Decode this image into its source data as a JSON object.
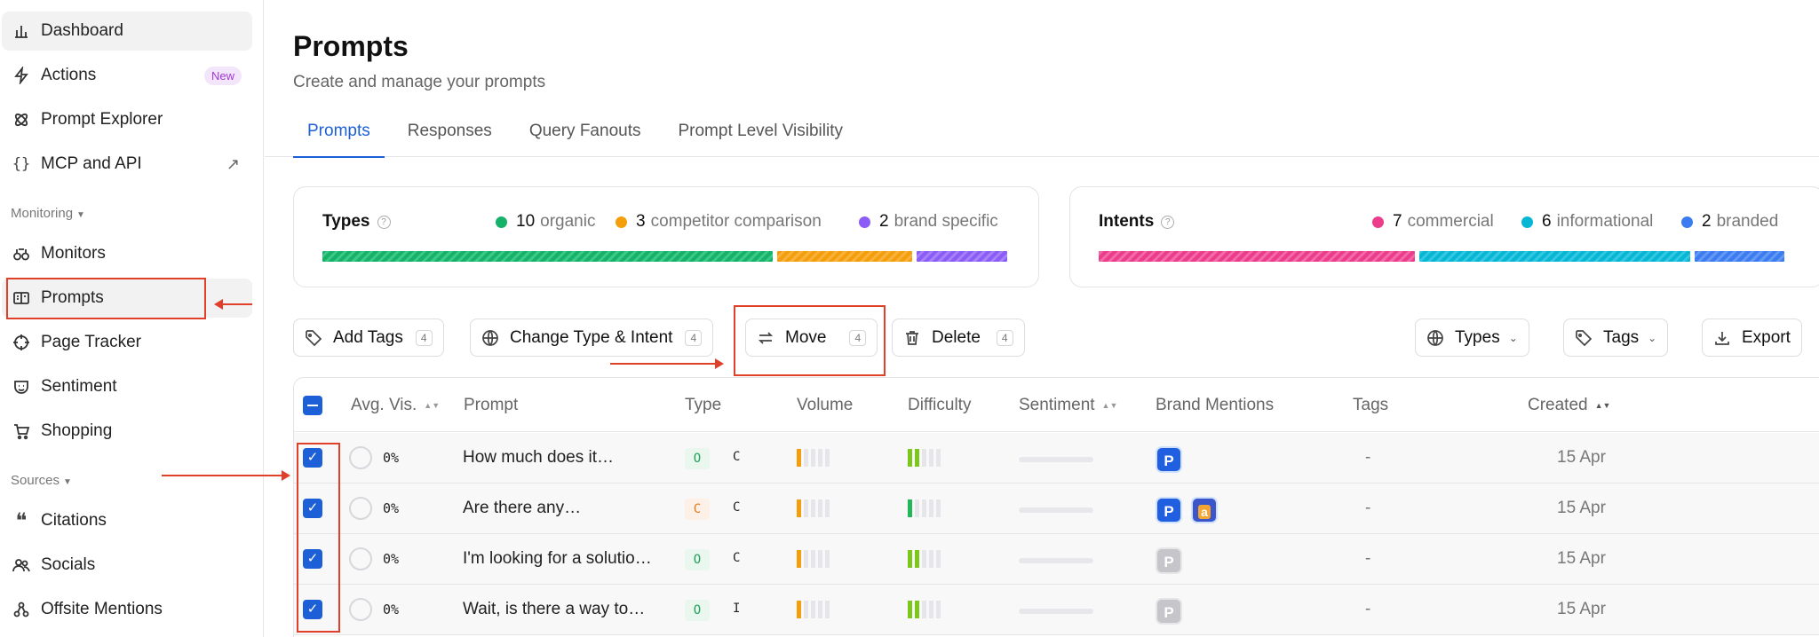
{
  "sidebar": {
    "items": [
      {
        "label": "Dashboard",
        "icon": "bar-chart-icon"
      },
      {
        "label": "Actions",
        "icon": "lightning-icon",
        "badge": "New"
      },
      {
        "label": "Prompt Explorer",
        "icon": "atom-icon"
      },
      {
        "label": "MCP and API",
        "icon": "braces-icon",
        "ext": "↗"
      },
      {
        "label": "Monitors",
        "icon": "binoculars-icon"
      },
      {
        "label": "Prompts",
        "icon": "prompt-card-icon"
      },
      {
        "label": "Page Tracker",
        "icon": "crosshair-icon"
      },
      {
        "label": "Sentiment",
        "icon": "mask-icon"
      },
      {
        "label": "Shopping",
        "icon": "cart-icon"
      },
      {
        "label": "Citations",
        "icon": "quote-icon"
      },
      {
        "label": "Socials",
        "icon": "people-icon"
      },
      {
        "label": "Offsite Mentions",
        "icon": "nodes-icon"
      }
    ],
    "sections": {
      "monitoring": "Monitoring",
      "sources": "Sources"
    }
  },
  "header": {
    "title": "Prompts",
    "subtitle": "Create and manage your prompts"
  },
  "tabs": [
    "Prompts",
    "Responses",
    "Query Fanouts",
    "Prompt Level Visibility"
  ],
  "types_card": {
    "title": "Types",
    "entries": [
      {
        "count": "10",
        "label": "organic",
        "color": "#17b26a"
      },
      {
        "count": "3",
        "label": "competitor comparison",
        "color": "#f59e0b"
      },
      {
        "count": "2",
        "label": "brand specific",
        "color": "#8b5cf6"
      }
    ]
  },
  "intents_card": {
    "title": "Intents",
    "entries": [
      {
        "count": "7",
        "label": "commercial",
        "color": "#ec3c8c"
      },
      {
        "count": "6",
        "label": "informational",
        "color": "#06b6d4"
      },
      {
        "count": "2",
        "label": "branded",
        "color": "#3b7cf0"
      }
    ]
  },
  "toolbar": {
    "add_tags": "Add Tags",
    "change_type": "Change Type & Intent",
    "move": "Move",
    "delete": "Delete",
    "selected_count": "4",
    "types": "Types",
    "tags": "Tags",
    "export": "Export"
  },
  "table": {
    "headers": {
      "avg_vis": "Avg. Vis.",
      "prompt": "Prompt",
      "type": "Type",
      "volume": "Volume",
      "difficulty": "Difficulty",
      "sentiment": "Sentiment",
      "brand_mentions": "Brand Mentions",
      "tags": "Tags",
      "created": "Created"
    },
    "rows": [
      {
        "vis": "0%",
        "prompt": "How much does it…",
        "type_chip": "O",
        "type_letter": "C",
        "tags": "-",
        "created": "15 Apr"
      },
      {
        "vis": "0%",
        "prompt": "Are there any…",
        "type_chip": "C",
        "type_letter": "C",
        "tags": "-",
        "created": "15 Apr"
      },
      {
        "vis": "0%",
        "prompt": "I'm looking for a solutio…",
        "type_chip": "O",
        "type_letter": "C",
        "tags": "-",
        "created": "15 Apr"
      },
      {
        "vis": "0%",
        "prompt": "Wait, is there a way to…",
        "type_chip": "O",
        "type_letter": "I",
        "tags": "-",
        "created": "15 Apr"
      }
    ]
  }
}
